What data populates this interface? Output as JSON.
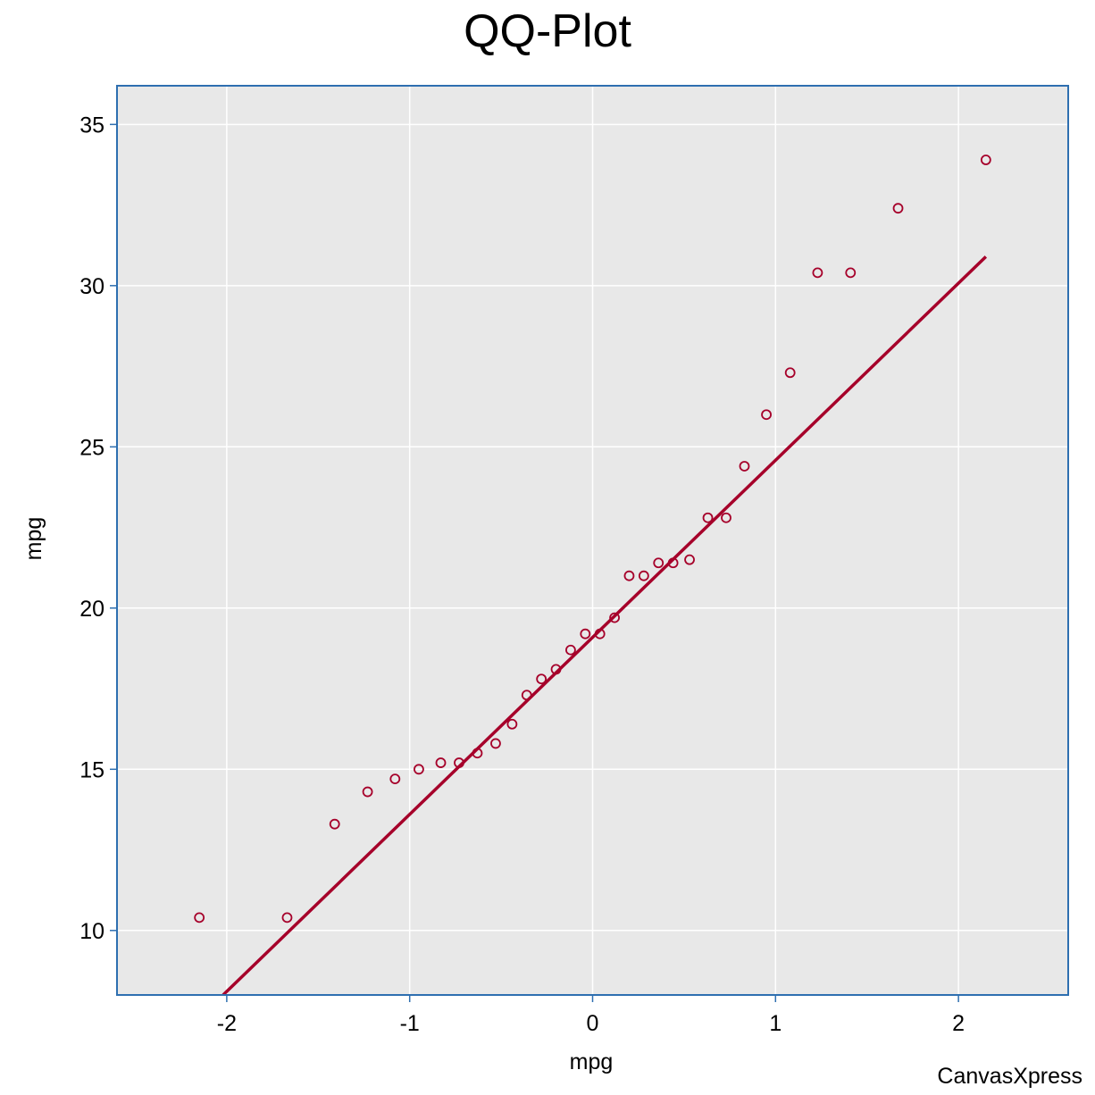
{
  "chart_data": {
    "type": "scatter",
    "title": "QQ-Plot",
    "xlabel": "mpg",
    "ylabel": "mpg",
    "credit": "CanvasXpress",
    "xlim": [
      -2.6,
      2.6
    ],
    "ylim": [
      8.0,
      36.2
    ],
    "x_ticks": [
      "-2",
      "-1",
      "0",
      "1",
      "2"
    ],
    "x_tick_values": [
      -2,
      -1,
      0,
      1,
      2
    ],
    "y_ticks": [
      "10",
      "15",
      "20",
      "25",
      "30",
      "35"
    ],
    "y_tick_values": [
      10,
      15,
      20,
      25,
      30,
      35
    ],
    "grid": true,
    "colors": {
      "panel_bg": "#e8e8e8",
      "grid": "#ffffff",
      "frame": "#2e6fb0",
      "series": "#a6002a"
    },
    "series": [
      {
        "points": [
          [
            -2.15,
            10.4
          ],
          [
            -1.67,
            10.4
          ],
          [
            -1.41,
            13.3
          ],
          [
            -1.23,
            14.3
          ],
          [
            -1.08,
            14.7
          ],
          [
            -0.95,
            15.0
          ],
          [
            -0.83,
            15.2
          ],
          [
            -0.73,
            15.2
          ],
          [
            -0.63,
            15.5
          ],
          [
            -0.53,
            15.8
          ],
          [
            -0.44,
            16.4
          ],
          [
            -0.36,
            17.3
          ],
          [
            -0.28,
            17.8
          ],
          [
            -0.2,
            18.1
          ],
          [
            -0.12,
            18.7
          ],
          [
            -0.04,
            19.2
          ],
          [
            0.04,
            19.2
          ],
          [
            0.12,
            19.7
          ],
          [
            0.2,
            21.0
          ],
          [
            0.28,
            21.0
          ],
          [
            0.36,
            21.4
          ],
          [
            0.44,
            21.4
          ],
          [
            0.53,
            21.5
          ],
          [
            0.63,
            22.8
          ],
          [
            0.73,
            22.8
          ],
          [
            0.83,
            24.4
          ],
          [
            0.95,
            26.0
          ],
          [
            1.08,
            27.3
          ],
          [
            1.23,
            30.4
          ],
          [
            1.41,
            30.4
          ],
          [
            1.67,
            32.4
          ],
          [
            2.15,
            33.9
          ]
        ]
      }
    ],
    "reference_line": {
      "start": [
        -2.02,
        8.0
      ],
      "end": [
        2.15,
        30.9
      ]
    }
  }
}
